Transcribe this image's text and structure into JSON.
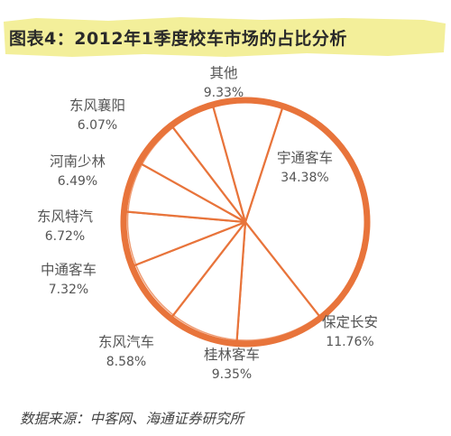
{
  "chart_data": {
    "type": "pie",
    "title": "图表4：2012年1季度校车市场的占比分析",
    "slices": [
      {
        "label": "宇通客车",
        "value": 34.38,
        "value_text": "34.38%"
      },
      {
        "label": "保定长安",
        "value": 11.76,
        "value_text": "11.76%"
      },
      {
        "label": "桂林客车",
        "value": 9.35,
        "value_text": "9.35%"
      },
      {
        "label": "东风汽车",
        "value": 8.58,
        "value_text": "8.58%"
      },
      {
        "label": "中通客车",
        "value": 7.32,
        "value_text": "7.32%"
      },
      {
        "label": "东风特汽",
        "value": 6.72,
        "value_text": "6.72%"
      },
      {
        "label": "河南少林",
        "value": 6.49,
        "value_text": "6.49%"
      },
      {
        "label": "东风襄阳",
        "value": 6.07,
        "value_text": "6.07%"
      },
      {
        "label": "其他",
        "value": 9.33,
        "value_text": "9.33%"
      }
    ],
    "source": "数据来源：中客网、海通证券研究所"
  },
  "colors": {
    "ring": "#e8743b",
    "title_band": "#f3ef9a",
    "label_text": "#555555"
  }
}
